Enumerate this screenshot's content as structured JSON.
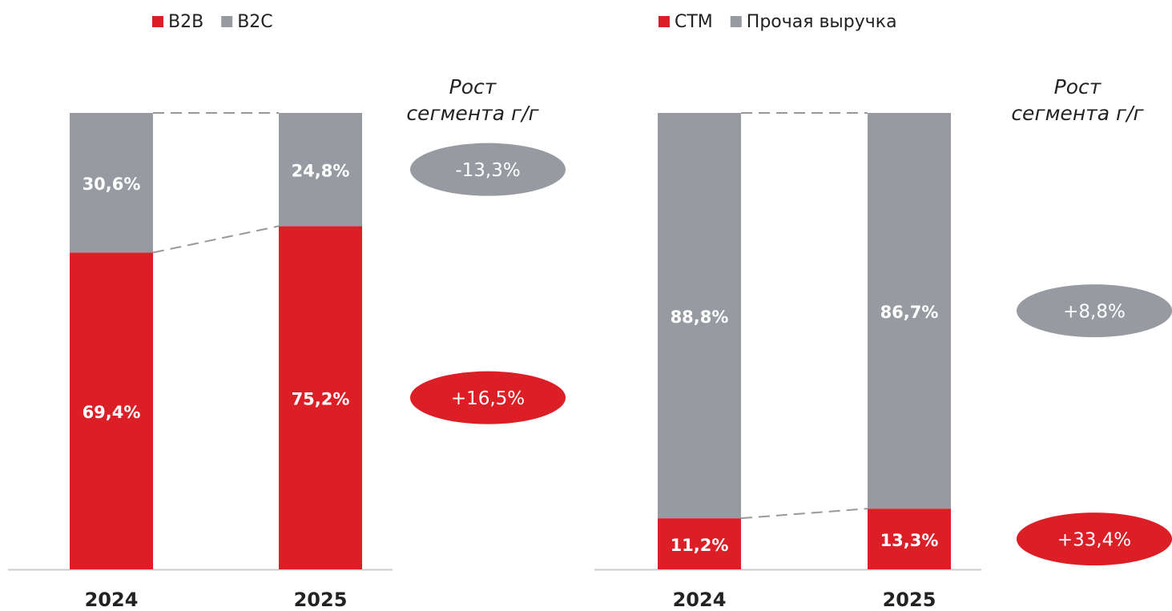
{
  "chart_data": [
    {
      "type": "stacked_bar",
      "categories": [
        "2024",
        "2025"
      ],
      "ylim": [
        0,
        100
      ],
      "annotation": [
        "Рост",
        "сегмента г/г"
      ],
      "series": [
        {
          "name": "B2B",
          "color": "#dc1f26",
          "values": [
            69.4,
            75.2
          ],
          "value_labels": [
            "69,4%",
            "75,2%"
          ],
          "growth_label": "+16,5%"
        },
        {
          "name": "B2C",
          "color": "#979ba1",
          "values": [
            30.6,
            24.8
          ],
          "value_labels": [
            "30,6%",
            "24,8%"
          ],
          "growth_label": "-13,3%"
        }
      ]
    },
    {
      "type": "stacked_bar",
      "categories": [
        "2024",
        "2025"
      ],
      "ylim": [
        0,
        100
      ],
      "annotation": [
        "Рост",
        "сегмента г/г"
      ],
      "series": [
        {
          "name": "СТМ",
          "color": "#dc1f26",
          "values": [
            11.2,
            13.3
          ],
          "value_labels": [
            "11,2%",
            "13,3%"
          ],
          "growth_label": "+33,4%"
        },
        {
          "name": "Прочая выручка",
          "color": "#979ba1",
          "values": [
            88.8,
            86.7
          ],
          "value_labels": [
            "88,8%",
            "86,7%"
          ],
          "growth_label": "+8,8%"
        }
      ]
    }
  ]
}
